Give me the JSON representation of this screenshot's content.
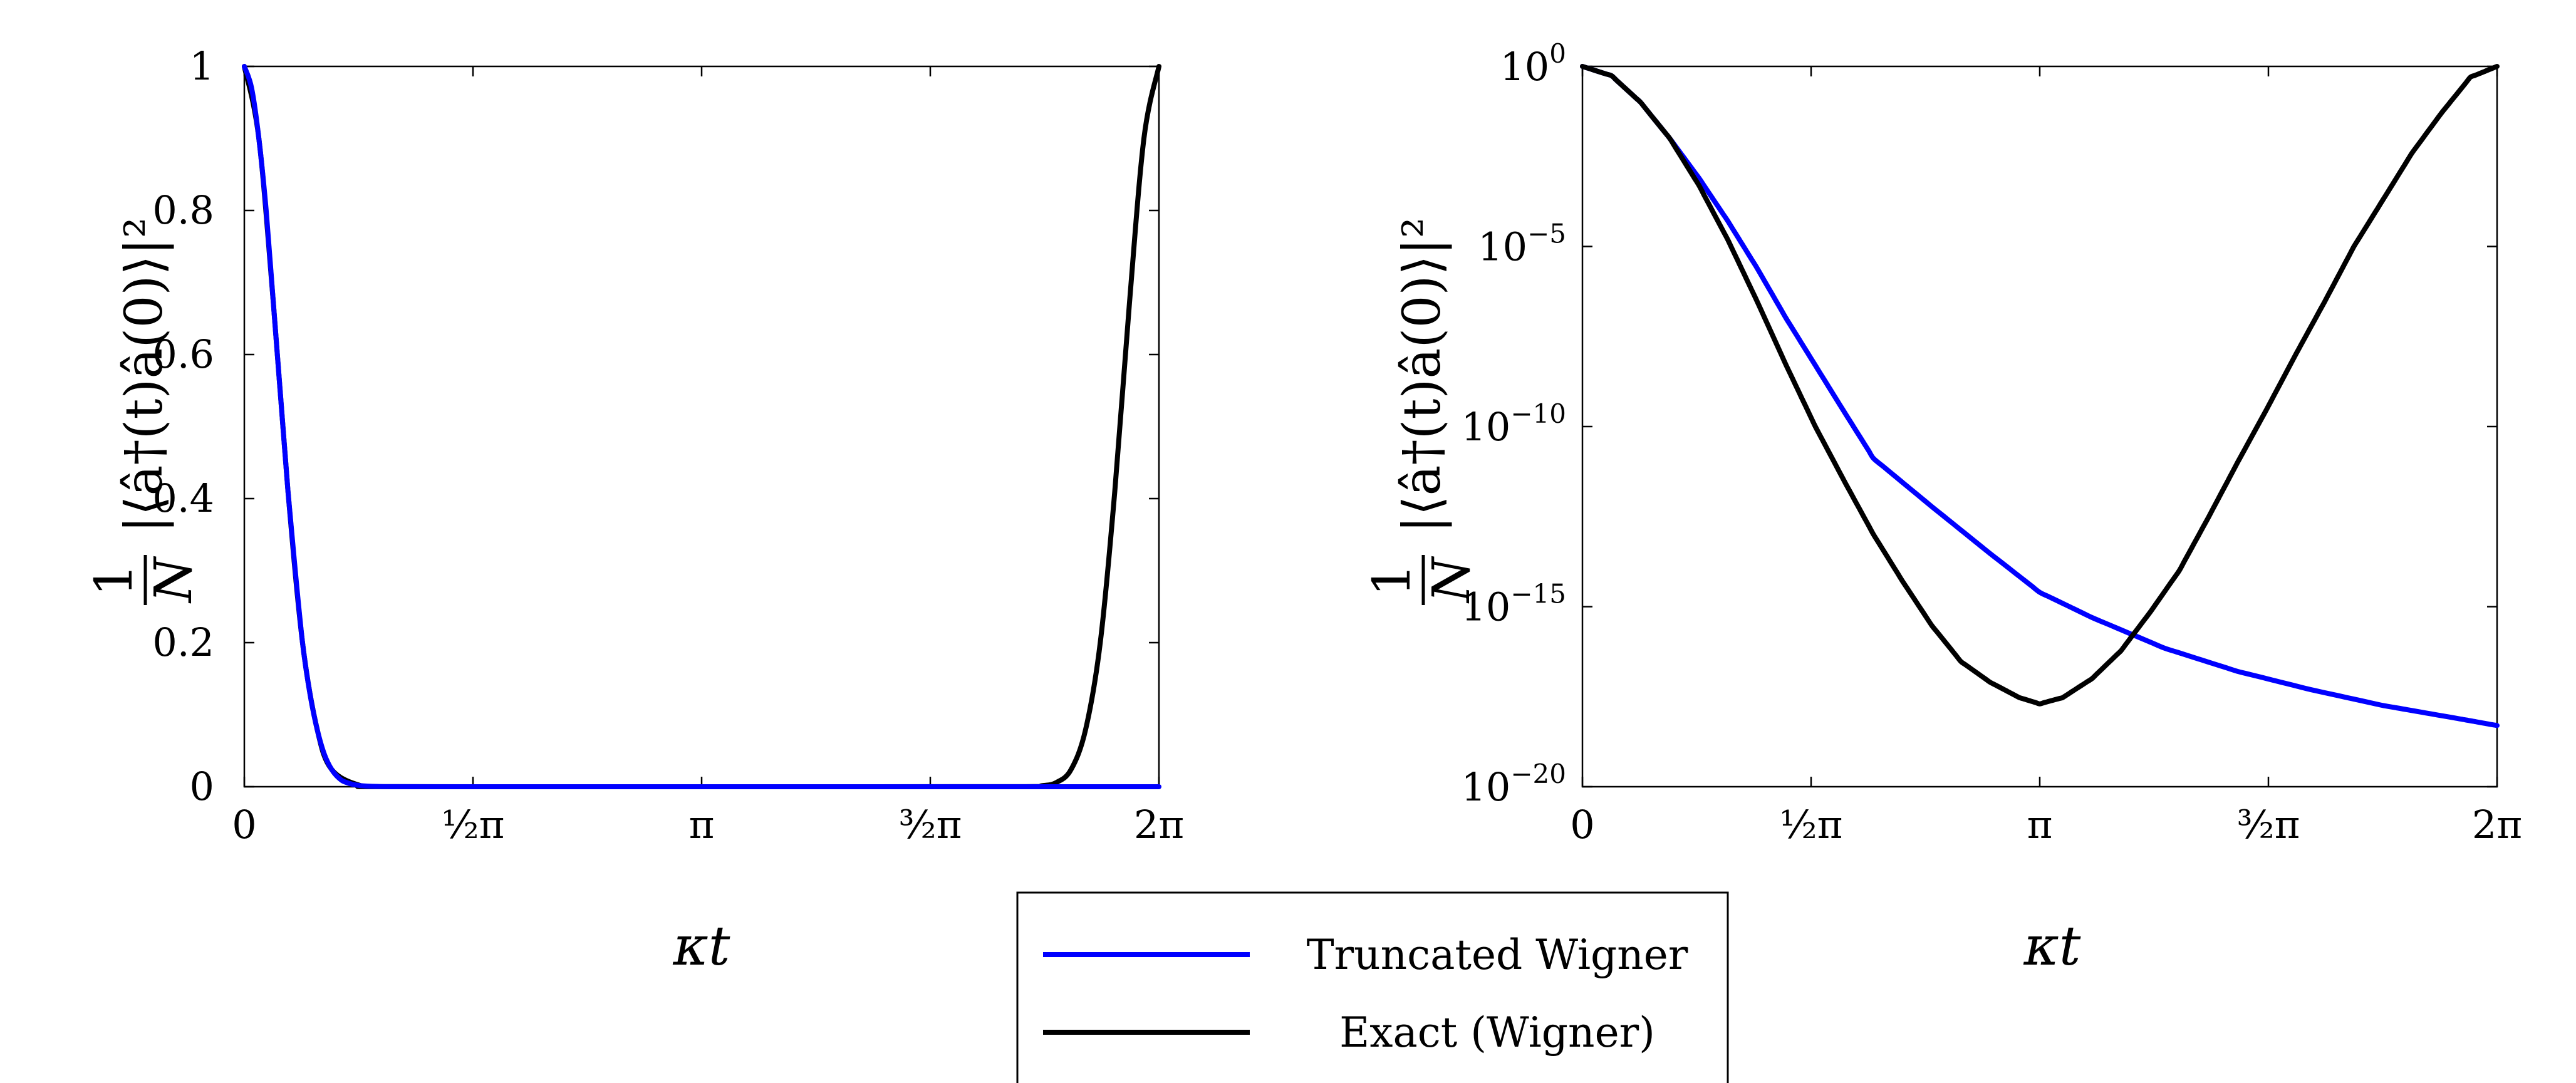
{
  "chart_data": [
    {
      "type": "line",
      "xlabel": "κt",
      "ylabel": {
        "frac_num": "1",
        "frac_den": "N",
        "expr": "|⟨â†(t)â(0)⟩|²"
      },
      "xlim": [
        0,
        6.2832
      ],
      "ylim": [
        0,
        1
      ],
      "yscale": "linear",
      "x_ticks": [
        "0",
        "½π",
        "π",
        "³⁄₂π",
        "2π"
      ],
      "x_tick_values": [
        0,
        1.5708,
        3.1416,
        4.7124,
        6.2832
      ],
      "y_ticks": [
        "0",
        "0.2",
        "0.4",
        "0.6",
        "0.8",
        "1"
      ],
      "y_tick_values": [
        0,
        0.2,
        0.4,
        0.6,
        0.8,
        1
      ],
      "series": [
        {
          "name": "Truncated Wigner",
          "color": "#0000ff",
          "x": [
            0,
            0.05,
            0.1,
            0.15,
            0.2,
            0.25,
            0.3,
            0.35,
            0.4,
            0.45,
            0.5,
            0.55,
            0.6,
            0.65,
            0.7,
            0.8,
            1.0,
            1.5,
            2.0,
            3.0,
            4.0,
            5.0,
            6.2832
          ],
          "y": [
            1.0,
            0.97,
            0.9,
            0.8,
            0.67,
            0.54,
            0.41,
            0.3,
            0.2,
            0.13,
            0.08,
            0.045,
            0.024,
            0.012,
            0.006,
            0.0015,
            0.0001,
            0,
            0,
            0,
            0,
            0,
            0
          ]
        },
        {
          "name": "Exact (Wigner)",
          "color": "#000000",
          "x": [
            0,
            0.1,
            0.2,
            0.3,
            0.4,
            0.5,
            0.6,
            0.8,
            1.0,
            3.1416,
            5.28,
            5.48,
            5.58,
            5.68,
            5.78,
            5.88,
            5.98,
            6.08,
            6.18,
            6.2832
          ],
          "y": [
            1.0,
            0.9,
            0.67,
            0.41,
            0.2,
            0.08,
            0.024,
            0.0015,
            0.0001,
            0,
            0.0001,
            0.0015,
            0.006,
            0.024,
            0.08,
            0.2,
            0.41,
            0.67,
            0.9,
            1.0
          ]
        }
      ]
    },
    {
      "type": "line",
      "xlabel": "κt",
      "ylabel": {
        "frac_num": "1",
        "frac_den": "N",
        "expr": "|⟨â†(t)â(0)⟩|²"
      },
      "xlim": [
        0,
        6.2832
      ],
      "ylim": [
        1e-20,
        1
      ],
      "yscale": "log",
      "x_ticks": [
        "0",
        "½π",
        "π",
        "³⁄₂π",
        "2π"
      ],
      "x_tick_values": [
        0,
        1.5708,
        3.1416,
        4.7124,
        6.2832
      ],
      "y_ticks": [
        {
          "base": "10",
          "exp": "0",
          "value_exp": 0
        },
        {
          "base": "10",
          "exp": "−5",
          "value_exp": -5
        },
        {
          "base": "10",
          "exp": "−10",
          "value_exp": -10
        },
        {
          "base": "10",
          "exp": "−15",
          "value_exp": -15
        },
        {
          "base": "10",
          "exp": "−20",
          "value_exp": -20
        }
      ],
      "series": [
        {
          "name": "Truncated Wigner",
          "color": "#0000ff",
          "x": [
            0,
            0.2,
            0.4,
            0.6,
            0.8,
            1.0,
            1.2,
            1.4,
            1.6,
            1.8,
            2.0,
            2.4,
            2.8,
            3.1416,
            3.5,
            4.0,
            4.5,
            5.0,
            5.5,
            6.0,
            6.2832
          ],
          "y": [
            1,
            0.55,
            0.1,
            0.01,
            0.0008,
            5e-05,
            2.5e-06,
            1e-07,
            5e-09,
            2.5e-10,
            1.3e-11,
            6e-13,
            3e-14,
            2.5e-15,
            5e-16,
            7e-17,
            1.6e-17,
            5e-18,
            1.8e-18,
            8e-19,
            5e-19
          ]
        },
        {
          "name": "Exact (Wigner)",
          "color": "#000000",
          "x": [
            0,
            0.2,
            0.4,
            0.6,
            0.8,
            1.0,
            1.2,
            1.4,
            1.6,
            1.8,
            2.0,
            2.2,
            2.4,
            2.6,
            2.8,
            3.0,
            3.1416,
            3.3,
            3.5,
            3.7,
            3.9,
            4.1,
            4.3,
            4.5,
            4.7,
            4.9,
            5.1,
            5.3,
            5.5,
            5.7,
            5.9,
            6.1,
            6.2832
          ],
          "y": [
            1,
            0.55,
            0.1,
            0.01,
            0.0005,
            1.5e-05,
            3e-07,
            5e-09,
            1e-10,
            3e-12,
            1e-13,
            5e-15,
            3e-16,
            3e-17,
            8e-18,
            3e-18,
            2e-18,
            3e-18,
            1e-17,
            6e-17,
            7e-16,
            1e-14,
            3e-13,
            1e-11,
            3e-10,
            1e-08,
            3e-07,
            1e-05,
            0.0002,
            0.004,
            0.05,
            0.5,
            1
          ]
        }
      ]
    }
  ],
  "legend": {
    "items": [
      {
        "label": "Truncated Wigner",
        "color": "#0000ff"
      },
      {
        "label": "Exact (Wigner)",
        "color": "#000000"
      }
    ]
  }
}
